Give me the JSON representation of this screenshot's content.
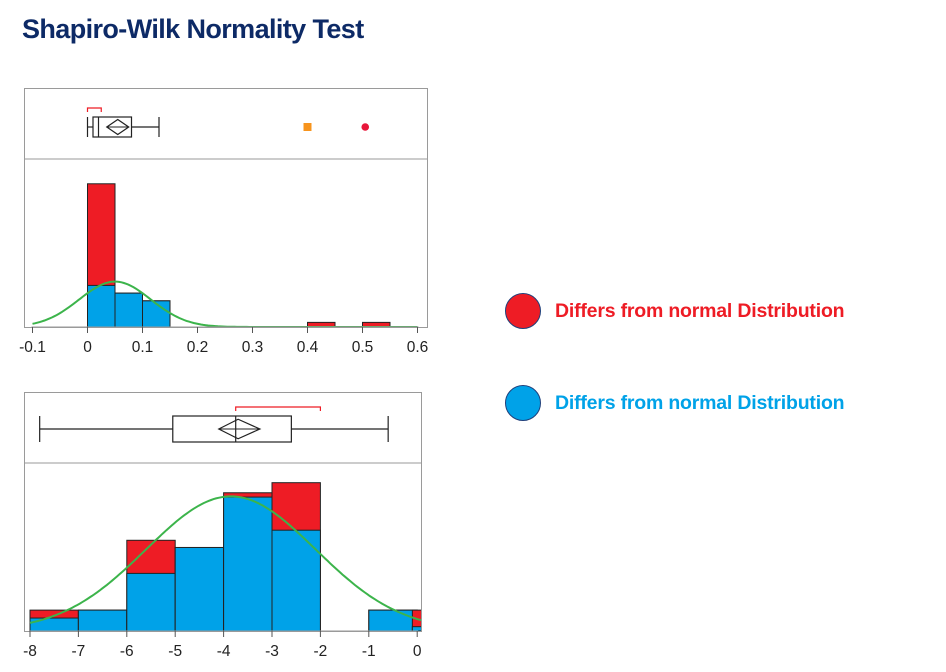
{
  "title": "Shapiro-Wilk Normality Test",
  "colors": {
    "red": "#ee1c25",
    "blue": "#00a2e8",
    "curve": "#3cb44b",
    "outline": "#222222",
    "title": "#0d2a66"
  },
  "legend": [
    {
      "color": "#ee1c25",
      "label": "Differs from normal Distribution",
      "label_color": "#ee1c25"
    },
    {
      "color": "#00a2e8",
      "label": "Differs from normal Distribution",
      "label_color": "#00a2e8"
    }
  ],
  "chart_data": [
    {
      "type": "bar",
      "x_ticks": [
        -0.1,
        0,
        0.1,
        0.2,
        0.3,
        0.4,
        0.5,
        0.6
      ],
      "x_tick_labels": [
        "-0.1",
        "0",
        "0.1",
        "0.2",
        "0.3",
        "0.4",
        "0.5",
        "0.6"
      ],
      "xlim": [
        -0.1,
        0.6
      ],
      "ylim": [
        0,
        10
      ],
      "bin_width": 0.05,
      "bins": [
        {
          "x0": 0.0,
          "observed": 9.3,
          "fitted": 2.7
        },
        {
          "x0": 0.05,
          "observed": 2.2,
          "fitted": 2.2
        },
        {
          "x0": 0.1,
          "observed": 1.7,
          "fitted": 1.7
        },
        {
          "x0": 0.4,
          "observed": 0.3,
          "fitted": 0
        },
        {
          "x0": 0.5,
          "observed": 0.3,
          "fitted": 0
        }
      ],
      "normal_curve": {
        "mean": 0.05,
        "sd": 0.065,
        "peak": 2.95
      },
      "boxplot": {
        "whisker_low": 0.0,
        "q1": 0.01,
        "median": 0.02,
        "q3": 0.08,
        "whisker_high": 0.13,
        "mean": 0.055,
        "ci_low": 0.035,
        "ci_high": 0.075,
        "shortest_half": [
          0.0,
          0.025
        ],
        "outliers": [
          {
            "x": 0.4,
            "shape": "square",
            "color": "#f7941d"
          },
          {
            "x": 0.505,
            "shape": "circle",
            "color": "#e8173a"
          }
        ]
      }
    },
    {
      "type": "bar",
      "x_ticks": [
        -8,
        -7,
        -6,
        -5,
        -4,
        -3,
        -2,
        -1,
        0
      ],
      "x_tick_labels": [
        "-8",
        "-7",
        "-6",
        "-5",
        "-4",
        "-3",
        "-2",
        "-1",
        "0"
      ],
      "xlim": [
        -8,
        0.2
      ],
      "ylim": [
        0,
        10
      ],
      "bin_width": 1,
      "bins": [
        {
          "x0": -8,
          "observed": 1.45,
          "fitted": 0.9
        },
        {
          "x0": -7,
          "observed": 1.45,
          "fitted": 1.45
        },
        {
          "x0": -6,
          "observed": 6.3,
          "fitted": 4.0
        },
        {
          "x0": -5,
          "observed": 5.8,
          "fitted": 5.8
        },
        {
          "x0": -4,
          "observed": 9.6,
          "fitted": 9.3
        },
        {
          "x0": -3,
          "observed": 10.3,
          "fitted": 7.0
        },
        {
          "x0": -1,
          "observed": 1.45,
          "fitted": 1.45
        },
        {
          "x0": -0.1,
          "observed": 1.45,
          "fitted": 0.3
        }
      ],
      "normal_curve": {
        "mean": -3.85,
        "sd": 1.75,
        "peak": 9.35
      },
      "boxplot": {
        "whisker_low": -7.8,
        "q1": -5.05,
        "median": -3.75,
        "q3": -2.6,
        "whisker_high": -0.6,
        "mean": -3.7,
        "ci_low": -4.1,
        "ci_high": -3.25,
        "shortest_half": [
          -3.75,
          -2.0
        ],
        "outliers": []
      }
    }
  ]
}
